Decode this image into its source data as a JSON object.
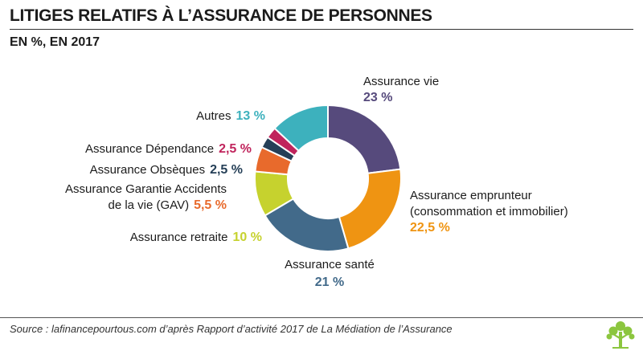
{
  "header": {
    "title": "LITIGES RELATIFS À L’ASSURANCE DE PERSONNES",
    "subtitle": "EN  %, EN 2017"
  },
  "footer": {
    "source": "Source : lafinancepourtous.com d’après Rapport d’activité 2017 de La Médiation de l’Assurance"
  },
  "chart_data": {
    "type": "pie",
    "title": "LITIGES RELATIFS À L’ASSURANCE DE PERSONNES",
    "subtitle": "EN  %, EN 2017",
    "unit": "%",
    "slices": [
      {
        "label_lines": [
          "Assurance vie"
        ],
        "value": 23,
        "value_text": "23 %",
        "color": "#564a7c"
      },
      {
        "label_lines": [
          "Assurance emprunteur",
          "(consommation et immobilier)"
        ],
        "value": 22.5,
        "value_text": "22,5 %",
        "color": "#ef9412"
      },
      {
        "label_lines": [
          "Assurance santé"
        ],
        "value": 21,
        "value_text": "21 %",
        "color": "#426a8a"
      },
      {
        "label_lines": [
          "Assurance retraite"
        ],
        "value": 10,
        "value_text": "10 %",
        "color": "#c6d22e"
      },
      {
        "label_lines": [
          "Assurance Garantie Accidents",
          "de la vie (GAV)"
        ],
        "value": 5.5,
        "value_text": "5,5 %",
        "color": "#e86a2c"
      },
      {
        "label_lines": [
          "Assurance Obsèques"
        ],
        "value": 2.5,
        "value_text": "2,5 %",
        "color": "#253f57"
      },
      {
        "label_lines": [
          "Assurance Dépendance"
        ],
        "value": 2.5,
        "value_text": "2,5 %",
        "color": "#c0245c"
      },
      {
        "label_lines": [
          "Autres"
        ],
        "value": 13,
        "value_text": "13 %",
        "color": "#3db1bd"
      }
    ],
    "legend": "none",
    "donut": true
  },
  "logo": {
    "icon": "tree-icon",
    "color": "#8cc63f"
  }
}
